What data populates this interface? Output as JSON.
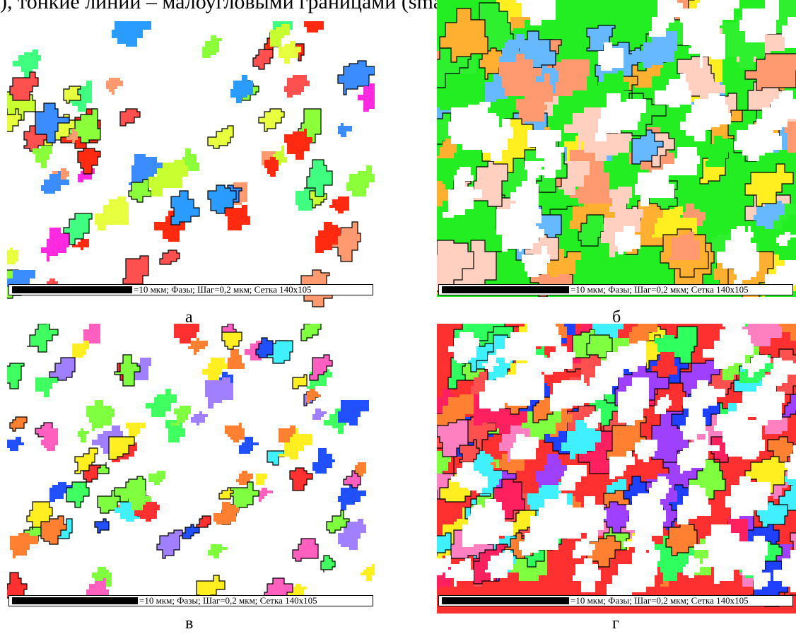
{
  "top_text": "), тонкие линии – малоугловыми границами (small-angle boundary – sa",
  "panels": [
    {
      "caption": "а",
      "scale_text": "=10 мкм; Фазы; Шаг=0,2 мкм; Сетка 140x105"
    },
    {
      "caption": "б",
      "scale_text": "=10 мкм; Фазы; Шаг=0,2 мкм; Сетка 140x105"
    },
    {
      "caption": "в",
      "scale_text": "=10 мкм; Фазы; Шаг=0,2 мкм; Сетка 140x105"
    },
    {
      "caption": "г",
      "scale_text": "=10 мкм; Фазы; Шаг=0,2 мкм; Сетка 140x105"
    }
  ],
  "palettes": {
    "a": [
      "#8aff3a",
      "#c8ff30",
      "#e8ff40",
      "#ff9a70",
      "#ff2a10",
      "#3a8cff",
      "#2a9cff",
      "#ff2ae0",
      "#40ff80",
      "#ff5050"
    ],
    "b": [
      "#22ee22",
      "#2ef02e",
      "#ffee20",
      "#ffb030",
      "#ff9a70",
      "#66b8ff",
      "#ffd0c0"
    ],
    "c": [
      "#40ff60",
      "#ff3030",
      "#2050ff",
      "#ff60c0",
      "#40f0ff",
      "#ff8030",
      "#ffee20",
      "#a080ff",
      "#80ff40"
    ],
    "d": [
      "#ff2060",
      "#ff3030",
      "#ff8030",
      "#a040ff",
      "#2040ff",
      "#80ff40",
      "#ffee20",
      "#40f0ff",
      "#ff80c0",
      "#ff5050",
      "#30ff60"
    ]
  }
}
